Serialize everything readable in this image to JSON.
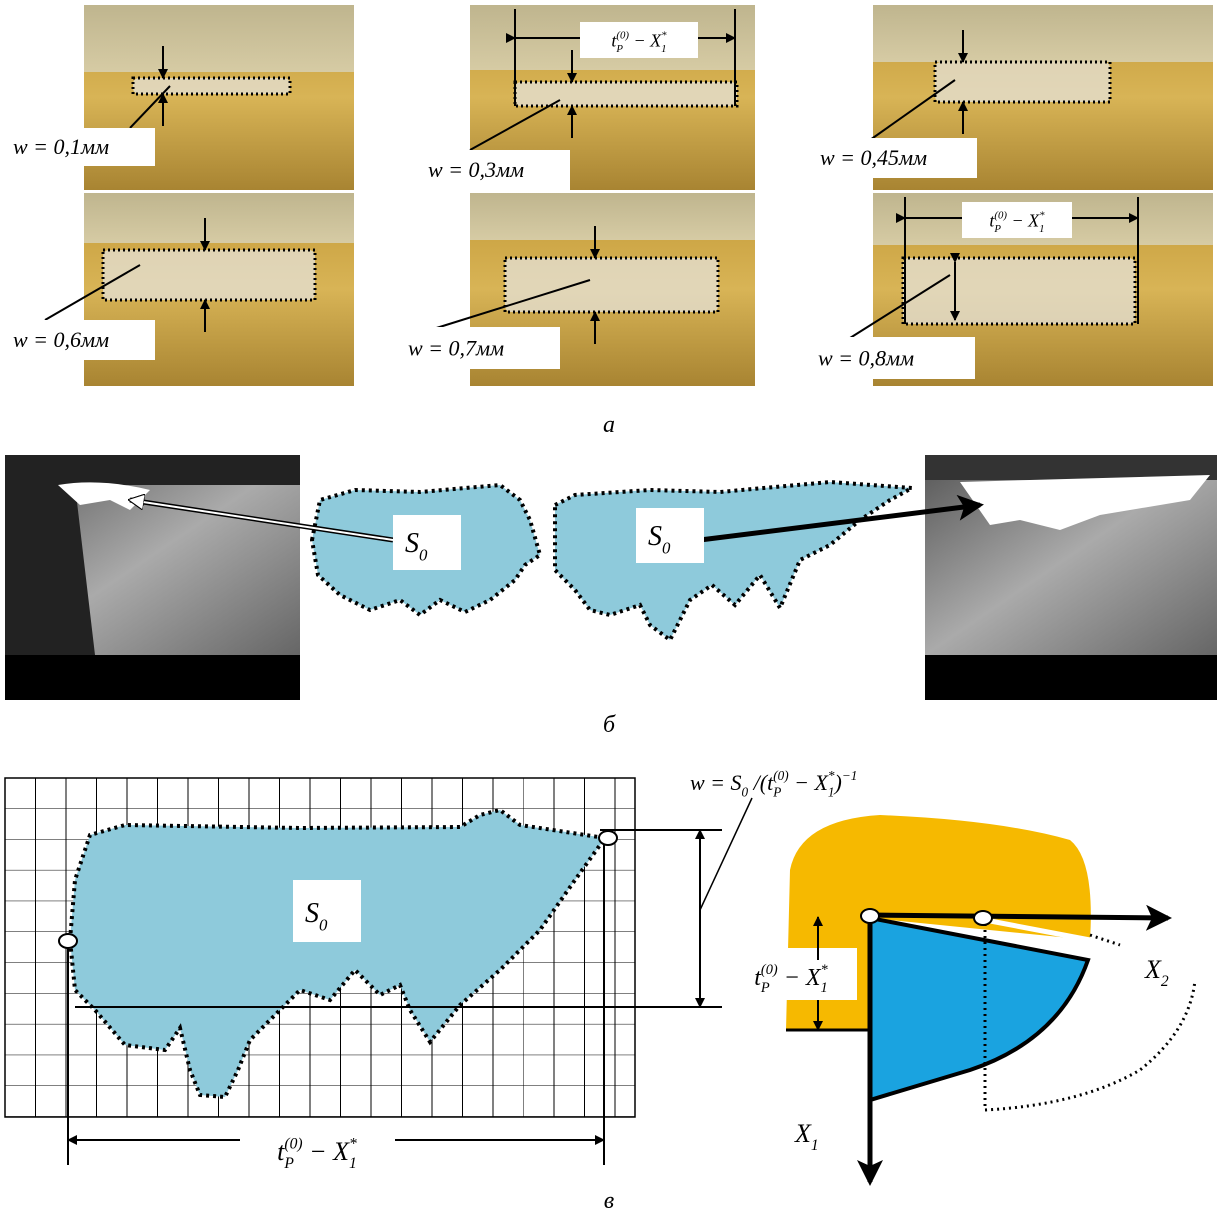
{
  "photo_labels": [
    "w = 0,1мм",
    "w = 0,3мм",
    "w = 0,45мм",
    "w = 0,6мм",
    "w = 0,7мм",
    "w = 0,8мм"
  ],
  "symbols": {
    "S0": [
      {
        "t": "S"
      },
      {
        "sub": "0"
      }
    ],
    "width": [
      {
        "t": "t"
      },
      {
        "sub": "P"
      },
      {
        "sup": "(0)"
      },
      {
        "t": " − X"
      },
      {
        "sub": "1"
      },
      {
        "sup": "*"
      }
    ],
    "formula": [
      {
        "t": "w = S"
      },
      {
        "sub": "0"
      },
      {
        "t": " /("
      },
      {
        "t": "t"
      },
      {
        "sub": "P"
      },
      {
        "sup": "(0)"
      },
      {
        "t": " − X"
      },
      {
        "sub": "1"
      },
      {
        "sup": "*"
      },
      {
        "t": ")"
      },
      {
        "sup": "−1"
      }
    ],
    "X1": [
      {
        "t": "X"
      },
      {
        "sub": "1"
      }
    ],
    "X2": [
      {
        "t": "X"
      },
      {
        "sub": "2"
      }
    ]
  },
  "captions": [
    "а",
    "б",
    "в"
  ]
}
